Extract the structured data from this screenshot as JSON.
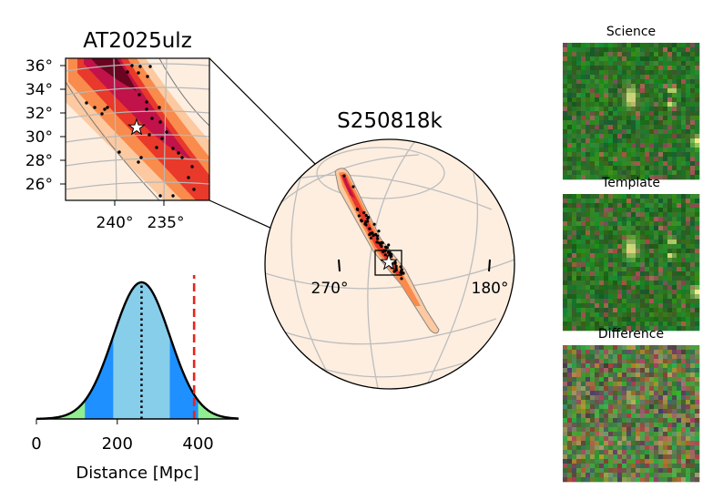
{
  "chart_data": [
    {
      "type": "map",
      "title": "AT2025ulz",
      "ytick_labels": [
        "36°",
        "34°",
        "32°",
        "30°",
        "28°",
        "26°"
      ],
      "xtick_labels": [
        "240°",
        "235°"
      ],
      "transient_marker": "star"
    },
    {
      "type": "map",
      "title": "S250818k",
      "lon_labels": [
        "270°",
        "180°"
      ],
      "colormap": [
        "#fdeee0",
        "#fcc9a0",
        "#f98b4c",
        "#e8392a",
        "#c2124a",
        "#6a0520"
      ]
    },
    {
      "type": "area",
      "xlabel": "Distance [Mpc]",
      "xtick_labels": [
        "0",
        "200",
        "400"
      ],
      "xlim": [
        0,
        500
      ],
      "mean": 260,
      "sigma": 70,
      "one_sigma": [
        190,
        330
      ],
      "two_sigma": [
        120,
        400
      ],
      "marker_line": 390,
      "colors": {
        "one_sigma": "#87ceeb",
        "two_sigma": "#1e90ff",
        "tail": "#90ee90",
        "marker": "#e8241e"
      }
    },
    {
      "type": "image",
      "panels": [
        "Science",
        "Template",
        "Difference"
      ]
    }
  ]
}
